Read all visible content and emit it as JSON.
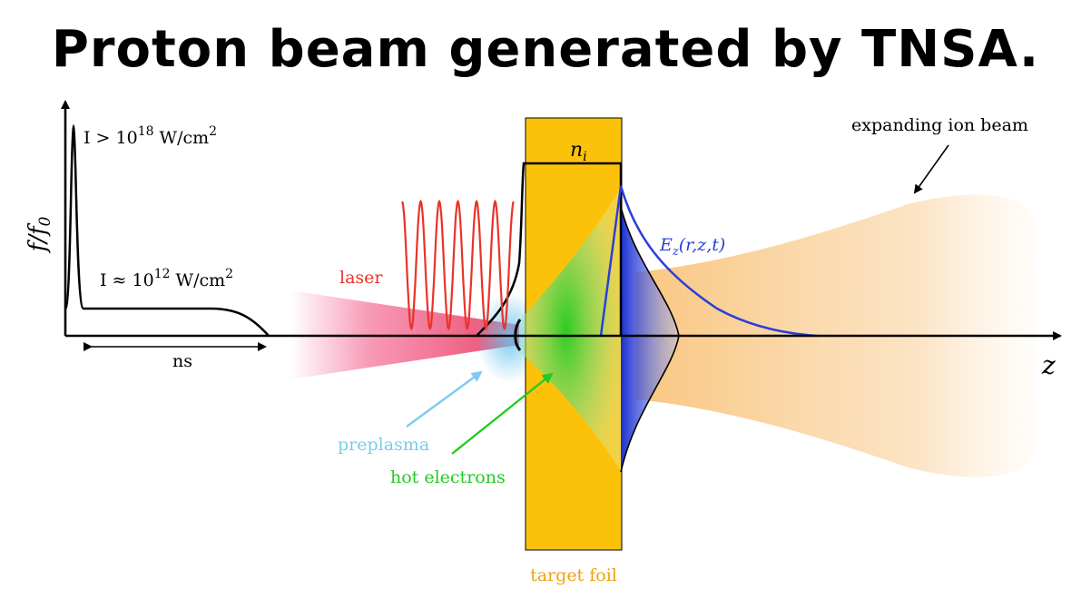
{
  "title": "Proton beam generated by TNSA.",
  "pulse": {
    "peak_label": {
      "prefix": "I > 10",
      "exp": "18",
      "unit": " W/cm",
      "unit_exp": "2"
    },
    "pedestal_label": {
      "prefix": "I ≈ 10",
      "exp": "12",
      "unit": " W/cm",
      "unit_exp": "2"
    },
    "duration_label": "ns",
    "y_axis_label": {
      "num": "f",
      "den": "f",
      "den_sub": "0"
    }
  },
  "labels": {
    "laser": "laser",
    "preplasma": "preplasma",
    "hot_electrons": "hot electrons",
    "target_foil": "target foil",
    "ion_density": {
      "base": "n",
      "sub": "i"
    },
    "field": {
      "base": "E",
      "sub": "z",
      "args": "(r,z,t)"
    },
    "expanding_beam": "expanding ion beam",
    "z_axis": "z"
  },
  "colors": {
    "laser": "#e8332a",
    "laser_beam": "#f0457a",
    "preplasma": "#6cc4ee",
    "hot_electrons": "#22cc22",
    "target_foil": "#fcc20a",
    "field": "#2a3fd6",
    "ion_beam": "#f8c078"
  }
}
